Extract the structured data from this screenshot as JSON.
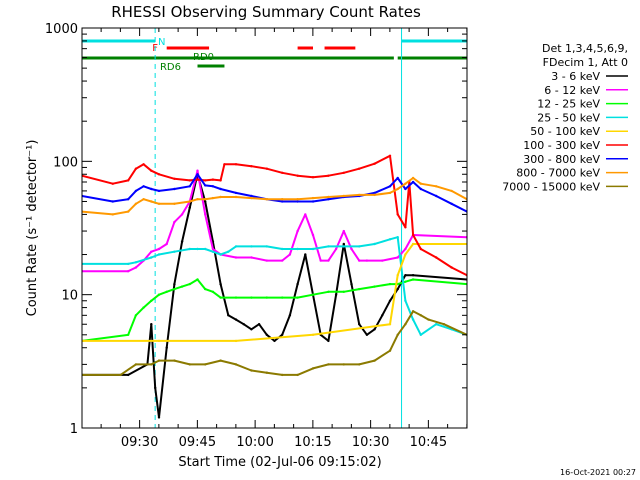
{
  "chart_data": {
    "type": "line",
    "title": "RHESSI Observing Summary Count Rates",
    "xlabel": "Start Time (02-Jul-06 09:15:02)",
    "ylabel": "Count Rate (s⁻¹ detector⁻¹)",
    "yscale": "log",
    "ylim": [
      1,
      1000
    ],
    "xlim_minutes": [
      0,
      100
    ],
    "x_ticks": [
      "09:30",
      "09:45",
      "10:00",
      "10:15",
      "10:30",
      "10:45"
    ],
    "y_ticks": [
      "1",
      "10",
      "100",
      "1000"
    ],
    "timestamp": "16-Oct-2021 00:27",
    "legend": {
      "header": [
        "Det 1,3,4,5,6,9,",
        "FDecim 1, Att 0"
      ],
      "placement": "right"
    },
    "status_bars": [
      {
        "label": "N",
        "color": "#00e0e0",
        "segments": [
          [
            0,
            19
          ],
          [
            83,
            100
          ]
        ]
      },
      {
        "label": "F",
        "color": "#ff0000",
        "segments": [
          [
            22,
            33
          ],
          [
            56,
            60
          ],
          [
            63,
            71
          ]
        ]
      },
      {
        "label": "RD0",
        "color": "#008000",
        "segments": [
          [
            0,
            81
          ],
          [
            82,
            100
          ]
        ]
      },
      {
        "label": "RD6",
        "color": "#008000",
        "segments": [
          [
            30,
            37
          ]
        ]
      }
    ],
    "markers": [
      {
        "color": "#00e0e0",
        "style": "dashed",
        "x": 19
      },
      {
        "color": "#00e0e0",
        "style": "solid",
        "x": 83
      },
      {
        "color": "#00e0e0",
        "style": "dashed",
        "x": 100
      }
    ],
    "series": [
      {
        "name": "3 - 6 keV",
        "color": "#000000",
        "x": [
          0,
          12,
          17,
          18,
          19,
          20,
          22,
          24,
          26,
          28,
          30,
          32,
          34,
          36,
          38,
          40,
          42,
          44,
          46,
          48,
          50,
          52,
          54,
          56,
          58,
          60,
          62,
          64,
          66,
          68,
          70,
          72,
          74,
          76,
          78,
          80,
          82,
          84,
          86,
          100
        ],
        "y": [
          2.5,
          2.5,
          3,
          6,
          2,
          1.2,
          4,
          12,
          25,
          45,
          80,
          50,
          25,
          12,
          7,
          6.5,
          6,
          5.5,
          6,
          5,
          4.5,
          5,
          7,
          12,
          20,
          10,
          5,
          4.5,
          10,
          24,
          12,
          6,
          5,
          5.5,
          7,
          9,
          11,
          14,
          14,
          13
        ]
      },
      {
        "name": "6 - 12 keV",
        "color": "#ff00ff",
        "x": [
          0,
          12,
          14,
          16,
          18,
          20,
          22,
          24,
          26,
          28,
          30,
          32,
          34,
          36,
          40,
          44,
          48,
          52,
          54,
          56,
          58,
          60,
          62,
          64,
          66,
          68,
          70,
          72,
          74,
          78,
          82,
          84,
          86,
          100
        ],
        "y": [
          15,
          15,
          16,
          18,
          21,
          22,
          24,
          35,
          40,
          50,
          85,
          40,
          22,
          20,
          19,
          19,
          18,
          18,
          20,
          30,
          40,
          28,
          18,
          18,
          22,
          30,
          22,
          18,
          18,
          18,
          19,
          22,
          28,
          27
        ]
      },
      {
        "name": "12 - 25 keV",
        "color": "#00ff00",
        "x": [
          0,
          12,
          14,
          16,
          18,
          20,
          22,
          24,
          26,
          28,
          30,
          32,
          34,
          36,
          40,
          44,
          48,
          52,
          56,
          60,
          64,
          68,
          72,
          76,
          80,
          82,
          84,
          86,
          100
        ],
        "y": [
          4.5,
          5,
          7,
          8,
          9,
          10,
          10.5,
          11,
          11.5,
          12,
          13,
          11,
          10.5,
          9.5,
          9.5,
          9.5,
          9.5,
          9.5,
          9.5,
          10,
          10.5,
          10.5,
          11,
          11.5,
          12,
          12,
          12.5,
          13,
          12
        ]
      },
      {
        "name": "25 - 50 keV",
        "color": "#00e0e0",
        "x": [
          0,
          12,
          14,
          18,
          20,
          24,
          28,
          30,
          32,
          34,
          36,
          38,
          40,
          44,
          48,
          52,
          56,
          60,
          64,
          68,
          72,
          76,
          80,
          82,
          84,
          86,
          88,
          92,
          96,
          100
        ],
        "y": [
          17,
          17,
          17.5,
          19,
          20,
          21,
          22,
          22,
          22,
          21,
          20,
          21,
          23,
          23,
          23,
          22,
          22,
          22,
          23,
          23,
          23,
          24,
          26,
          27,
          9,
          6.5,
          5,
          6,
          5.5,
          5
        ]
      },
      {
        "name": "50 - 100 keV",
        "color": "#ffd700",
        "x": [
          0,
          20,
          40,
          60,
          80,
          82,
          84,
          86,
          100
        ],
        "y": [
          4.5,
          4.5,
          4.5,
          5,
          6,
          14,
          20,
          24,
          24
        ]
      },
      {
        "name": "100 - 300 keV",
        "color": "#ff0000",
        "x": [
          0,
          8,
          12,
          14,
          16,
          18,
          20,
          24,
          28,
          30,
          32,
          34,
          36,
          37,
          40,
          44,
          48,
          52,
          56,
          60,
          64,
          68,
          72,
          76,
          80,
          82,
          84,
          85,
          86,
          88,
          92,
          96,
          100
        ],
        "y": [
          78,
          68,
          72,
          88,
          95,
          85,
          80,
          74,
          72,
          73,
          72,
          73,
          72,
          95,
          95,
          92,
          88,
          82,
          78,
          76,
          78,
          82,
          88,
          96,
          110,
          40,
          32,
          70,
          28,
          22,
          19,
          16,
          14
        ]
      },
      {
        "name": "300 - 800 keV",
        "color": "#0000ff",
        "x": [
          0,
          8,
          12,
          14,
          16,
          18,
          20,
          24,
          28,
          30,
          32,
          34,
          36,
          40,
          44,
          48,
          52,
          56,
          60,
          64,
          68,
          72,
          76,
          80,
          82,
          84,
          86,
          88,
          92,
          96,
          100
        ],
        "y": [
          55,
          50,
          52,
          60,
          65,
          62,
          60,
          62,
          65,
          80,
          66,
          65,
          62,
          58,
          55,
          52,
          50,
          50,
          50,
          52,
          54,
          55,
          58,
          65,
          75,
          62,
          70,
          62,
          55,
          48,
          42
        ]
      },
      {
        "name": "800 - 7000 keV",
        "color": "#ff9900",
        "x": [
          0,
          8,
          12,
          14,
          16,
          18,
          20,
          24,
          28,
          30,
          32,
          34,
          36,
          40,
          44,
          48,
          52,
          56,
          60,
          64,
          68,
          72,
          76,
          80,
          82,
          84,
          86,
          88,
          92,
          96,
          100
        ],
        "y": [
          42,
          40,
          42,
          48,
          52,
          50,
          48,
          48,
          50,
          52,
          52,
          53,
          54,
          54,
          53,
          52,
          52,
          52,
          53,
          54,
          55,
          56,
          56,
          58,
          62,
          68,
          75,
          68,
          65,
          60,
          52
        ]
      },
      {
        "name": "7000 - 15000 keV",
        "color": "#8b7a00",
        "x": [
          0,
          10,
          14,
          18,
          20,
          24,
          28,
          32,
          36,
          40,
          44,
          48,
          52,
          56,
          60,
          64,
          68,
          72,
          76,
          80,
          82,
          84,
          86,
          88,
          90,
          94,
          100
        ],
        "y": [
          2.5,
          2.5,
          3,
          3,
          3.2,
          3.2,
          3,
          3,
          3.2,
          3,
          2.7,
          2.6,
          2.5,
          2.5,
          2.8,
          3,
          3,
          3,
          3.2,
          3.8,
          5,
          6,
          7.5,
          7,
          6.5,
          6,
          5
        ]
      }
    ]
  }
}
